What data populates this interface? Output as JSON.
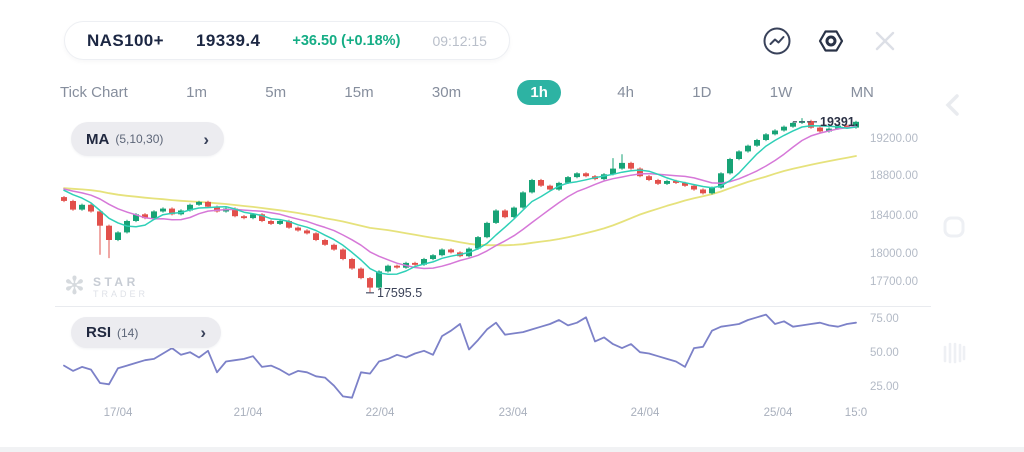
{
  "header": {
    "symbol": "NAS100+",
    "price": "19339.4",
    "change": "+36.50 (+0.18%)",
    "time": "09:12:15"
  },
  "tabs": {
    "items": [
      "Tick Chart",
      "1m",
      "5m",
      "15m",
      "30m",
      "1h",
      "4h",
      "1D",
      "1W",
      "MN"
    ],
    "active": "1h"
  },
  "indicators": {
    "ma_name": "MA",
    "ma_params": "(5,10,30)",
    "rsi_name": "RSI",
    "rsi_params": "(14)",
    "chevron": "›"
  },
  "watermark": {
    "star": "✻",
    "line1": "STAR",
    "line2": "TRADER"
  },
  "price_axis": [
    "19200.00",
    "18800.00",
    "18400.00",
    "18000.00",
    "17700.00"
  ],
  "rsi_axis": [
    "75.00",
    "50.00",
    "25.00"
  ],
  "x_axis": [
    "17/04",
    "21/04",
    "22/04",
    "23/04",
    "24/04",
    "25/04",
    "15:0"
  ],
  "labels": {
    "last_price": "19391.",
    "low_price": "17595.5"
  },
  "colors": {
    "up": "#17a376",
    "down": "#e2504b",
    "ma5": "#2fd0b7",
    "ma10": "#d678d8",
    "ma30": "#e6e27c",
    "rsi": "#7c81c8",
    "accent": "#2db3a3",
    "change_green": "#15ad85",
    "marker": "#555e72"
  },
  "chart_data": {
    "type": "candlestick",
    "symbol": "NAS100+",
    "timeframe": "1h",
    "ma_periods": [
      5,
      10,
      30
    ],
    "rsi_period": 14,
    "low": 17595.5,
    "last": 19391,
    "price_axis_values": [
      19200,
      18800,
      18400,
      18000,
      17700
    ],
    "rsi_axis_values": [
      75,
      50,
      25
    ],
    "x_tick_labels": [
      "17/04",
      "21/04",
      "22/04",
      "23/04",
      "24/04",
      "25/04",
      "15:0"
    ],
    "candles": {
      "first_open": 18600,
      "prior_level": 18700,
      "wick": 12,
      "closes": [
        18560,
        18470,
        18520,
        18450,
        18300,
        18150,
        18230,
        18350,
        18420,
        18380,
        18450,
        18480,
        18420,
        18460,
        18520,
        18550,
        18500,
        18450,
        18480,
        18400,
        18380,
        18420,
        18350,
        18320,
        18350,
        18280,
        18250,
        18220,
        18150,
        18100,
        18050,
        17950,
        17850,
        17750,
        17650,
        17820,
        17880,
        17860,
        17910,
        17890,
        17950,
        17990,
        18050,
        18020,
        17980,
        18060,
        18180,
        18330,
        18460,
        18390,
        18490,
        18650,
        18780,
        18720,
        18680,
        18750,
        18810,
        18850,
        18820,
        18790,
        18840,
        18900,
        18960,
        18900,
        18820,
        18780,
        18740,
        18770,
        18750,
        18720,
        18680,
        18640,
        18700,
        18850,
        19000,
        19080,
        19140,
        19200,
        19260,
        19300,
        19340,
        19380,
        19400,
        19330,
        19290,
        19320,
        19350,
        19330,
        19391
      ],
      "overrides": {
        "4": {
          "low": 17995
        },
        "5": {
          "low": 17960
        },
        "34": {
          "low": 17595.5
        },
        "61": {
          "high": 19010
        },
        "62": {
          "high": 19050
        },
        "82": {
          "high": 19430
        }
      }
    },
    "rsi_values": [
      41,
      37,
      40,
      38,
      28,
      27,
      39,
      41,
      43,
      45,
      46,
      50,
      54,
      49,
      51,
      47,
      52,
      36,
      44,
      45,
      46,
      48,
      40,
      41,
      38,
      34,
      37,
      36,
      33,
      32,
      26,
      18,
      17,
      36,
      35,
      44,
      46,
      49,
      47,
      50,
      52,
      49,
      63,
      67,
      72,
      53,
      60,
      68,
      73,
      64,
      65,
      66,
      68,
      70,
      72,
      75,
      71,
      73,
      77,
      59,
      62,
      57,
      54,
      57,
      51,
      50,
      48,
      46,
      44,
      40,
      54,
      55,
      67,
      70,
      71,
      72,
      75,
      77,
      79,
      72,
      74,
      70,
      71,
      72,
      73,
      71,
      70,
      72,
      73
    ]
  }
}
